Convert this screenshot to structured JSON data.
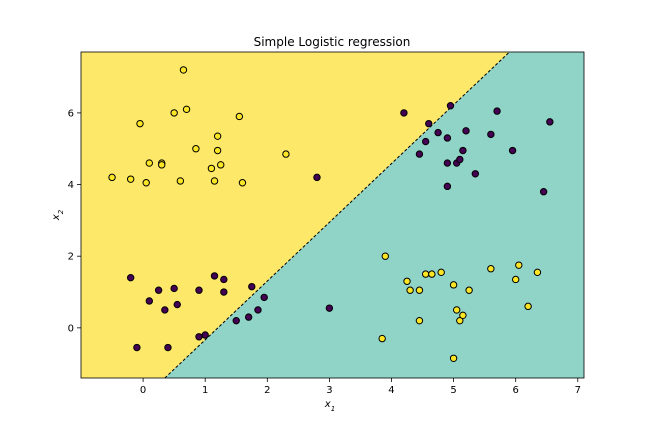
{
  "chart_data": {
    "type": "scatter",
    "title": "Simple Logistic regression",
    "xlabel": "x",
    "xlabel_sub": "1",
    "ylabel": "x",
    "ylabel_sub": "2",
    "xlim": [
      -1.0,
      7.1
    ],
    "ylim": [
      -1.4,
      7.7
    ],
    "xticks": [
      0,
      1,
      2,
      3,
      4,
      5,
      6,
      7
    ],
    "yticks": [
      0,
      2,
      4,
      6
    ],
    "grid": false,
    "decision_boundary": {
      "x": [
        0.35,
        5.9
      ],
      "y": [
        -1.4,
        7.7
      ],
      "style": "dashed"
    },
    "regions": [
      {
        "class": "class-0",
        "color": "#fde869"
      },
      {
        "class": "class-1",
        "color": "#8fd4c7"
      }
    ],
    "series": [
      {
        "class": "class-0",
        "color": "#fde725",
        "points": [
          [
            -0.5,
            4.2
          ],
          [
            -0.2,
            4.15
          ],
          [
            -0.05,
            5.7
          ],
          [
            0.05,
            4.05
          ],
          [
            0.1,
            4.6
          ],
          [
            0.3,
            4.6
          ],
          [
            0.3,
            4.55
          ],
          [
            0.5,
            6.0
          ],
          [
            0.6,
            4.1
          ],
          [
            0.65,
            7.2
          ],
          [
            0.7,
            6.1
          ],
          [
            0.85,
            5.0
          ],
          [
            1.1,
            4.45
          ],
          [
            1.15,
            4.1
          ],
          [
            1.2,
            4.95
          ],
          [
            1.2,
            5.35
          ],
          [
            1.25,
            4.55
          ],
          [
            1.55,
            5.9
          ],
          [
            1.6,
            4.05
          ],
          [
            2.3,
            4.85
          ],
          [
            3.9,
            2.0
          ],
          [
            3.85,
            -0.3
          ],
          [
            4.25,
            1.3
          ],
          [
            4.3,
            1.05
          ],
          [
            4.45,
            1.05
          ],
          [
            4.55,
            1.5
          ],
          [
            4.65,
            1.5
          ],
          [
            4.8,
            1.55
          ],
          [
            4.45,
            0.2
          ],
          [
            5.0,
            1.2
          ],
          [
            5.05,
            0.5
          ],
          [
            5.1,
            0.2
          ],
          [
            5.15,
            0.35
          ],
          [
            5.25,
            1.05
          ],
          [
            5.6,
            1.65
          ],
          [
            6.0,
            1.35
          ],
          [
            6.05,
            1.75
          ],
          [
            6.2,
            0.6
          ],
          [
            6.35,
            1.55
          ],
          [
            5.0,
            -0.85
          ]
        ]
      },
      {
        "class": "class-1",
        "color": "#440154",
        "points": [
          [
            -0.2,
            1.4
          ],
          [
            0.1,
            0.75
          ],
          [
            0.25,
            1.05
          ],
          [
            0.35,
            0.5
          ],
          [
            0.5,
            1.1
          ],
          [
            0.55,
            0.65
          ],
          [
            0.9,
            1.05
          ],
          [
            0.9,
            -0.25
          ],
          [
            1.0,
            -0.2
          ],
          [
            1.15,
            1.45
          ],
          [
            1.3,
            1.35
          ],
          [
            1.3,
            1.0
          ],
          [
            1.5,
            0.2
          ],
          [
            1.7,
            0.3
          ],
          [
            1.75,
            1.15
          ],
          [
            1.85,
            0.5
          ],
          [
            1.95,
            0.85
          ],
          [
            0.4,
            -0.55
          ],
          [
            -0.1,
            -0.55
          ],
          [
            2.8,
            4.2
          ],
          [
            3.0,
            0.55
          ],
          [
            4.2,
            6.0
          ],
          [
            4.45,
            4.85
          ],
          [
            4.55,
            5.2
          ],
          [
            4.6,
            5.7
          ],
          [
            4.75,
            5.45
          ],
          [
            4.9,
            5.3
          ],
          [
            4.95,
            6.2
          ],
          [
            4.9,
            4.6
          ],
          [
            4.9,
            3.95
          ],
          [
            5.05,
            4.6
          ],
          [
            5.1,
            4.7
          ],
          [
            5.15,
            4.95
          ],
          [
            5.2,
            5.5
          ],
          [
            5.35,
            4.3
          ],
          [
            5.6,
            5.4
          ],
          [
            5.7,
            6.05
          ],
          [
            5.95,
            4.95
          ],
          [
            6.45,
            3.8
          ],
          [
            6.55,
            5.75
          ]
        ]
      }
    ]
  }
}
